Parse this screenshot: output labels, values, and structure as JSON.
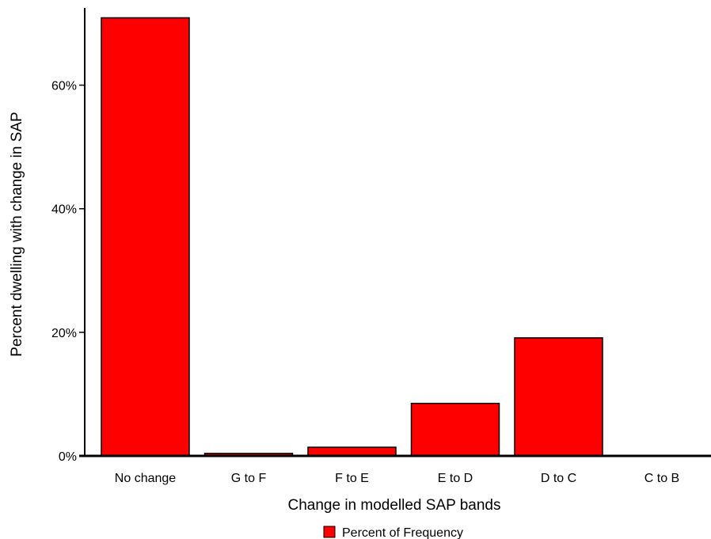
{
  "chart_data": {
    "type": "bar",
    "categories": [
      "No change",
      "G to F",
      "F to E",
      "E to D",
      "D to C",
      "C to B"
    ],
    "series": [
      {
        "name": "Percent of Frequency",
        "values": [
          70.9,
          0.4,
          1.4,
          8.5,
          19.1,
          0.05
        ]
      }
    ],
    "ylabel": "Percent dwelling with change in SAP",
    "xlabel": "Change in modelled SAP bands",
    "yticks": [
      0,
      20,
      40,
      60
    ],
    "ytick_labels": [
      "0%",
      "20%",
      "40%",
      "60%"
    ],
    "ylim": [
      0,
      72.5
    ],
    "legend_position": "bottom-center",
    "grid": false,
    "colors": {
      "bar_fill": "#ff0000",
      "bar_stroke": "#000000"
    }
  }
}
